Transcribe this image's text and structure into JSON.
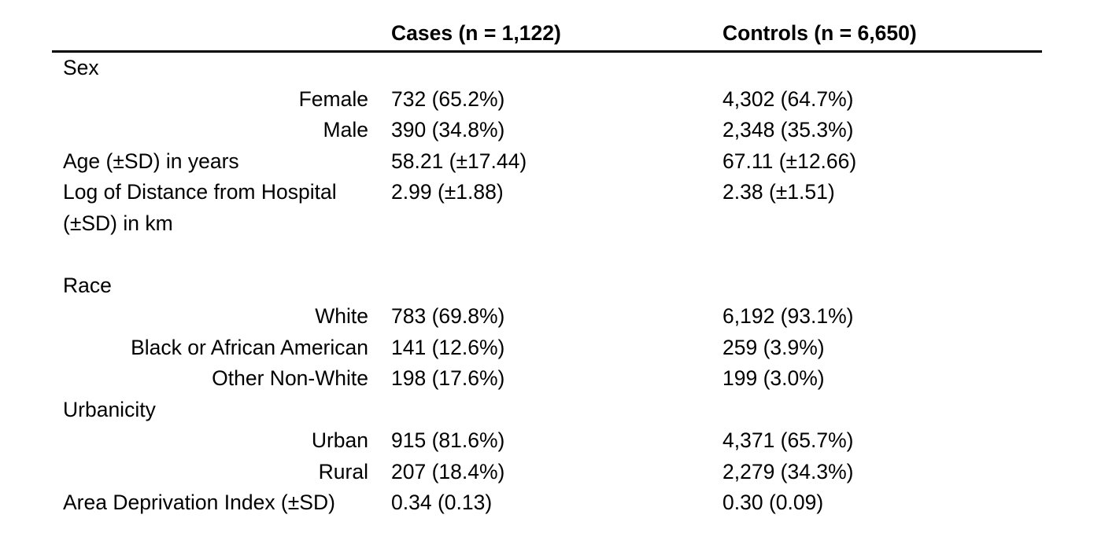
{
  "table": {
    "colors": {
      "text": "#000000",
      "background": "#ffffff",
      "header_rule": "#000000"
    },
    "header": {
      "row_label_column": "",
      "cases": "Cases (n = 1,122)",
      "controls": "Controls (n = 6,650)"
    },
    "rows": [
      {
        "type": "category",
        "label": "Sex",
        "cases": "",
        "controls": ""
      },
      {
        "type": "sub",
        "label": "Female",
        "cases": "732 (65.2%)",
        "controls": "4,302 (64.7%)"
      },
      {
        "type": "sub",
        "label": "Male",
        "cases": "390 (34.8%)",
        "controls": "2,348 (35.3%)"
      },
      {
        "type": "category",
        "label": "Age (±SD) in years",
        "cases": "58.21 (±17.44)",
        "controls": "67.11 (±12.66)"
      },
      {
        "type": "category",
        "label": "Log of Distance from Hospital (±SD) in km",
        "cases": "2.99 (±1.88)",
        "controls": "2.38 (±1.51)"
      },
      {
        "type": "spacer",
        "label": "",
        "cases": "",
        "controls": ""
      },
      {
        "type": "category",
        "label": "Race",
        "cases": "",
        "controls": ""
      },
      {
        "type": "sub",
        "label": "White",
        "cases": "783 (69.8%)",
        "controls": "6,192 (93.1%)"
      },
      {
        "type": "sub",
        "label": "Black or African American",
        "cases": "141 (12.6%)",
        "controls": "259 (3.9%)"
      },
      {
        "type": "sub",
        "label": "Other Non-White",
        "cases": "198 (17.6%)",
        "controls": "199 (3.0%)"
      },
      {
        "type": "category",
        "label": "Urbanicity",
        "cases": "",
        "controls": ""
      },
      {
        "type": "sub",
        "label": "Urban",
        "cases": "915 (81.6%)",
        "controls": "4,371 (65.7%)"
      },
      {
        "type": "sub",
        "label": "Rural",
        "cases": "207 (18.4%)",
        "controls": "2,279 (34.3%)"
      },
      {
        "type": "category",
        "label": "Area Deprivation Index (±SD)",
        "cases": "0.34 (0.13)",
        "controls": "0.30 (0.09)"
      }
    ]
  },
  "chart_data": {
    "type": "table",
    "columns": [
      "",
      "Cases (n = 1,122)",
      "Controls (n = 6,650)"
    ],
    "rows": [
      [
        "Sex",
        "",
        ""
      ],
      [
        "Female",
        "732 (65.2%)",
        "4,302 (64.7%)"
      ],
      [
        "Male",
        "390 (34.8%)",
        "2,348 (35.3%)"
      ],
      [
        "Age (±SD) in years",
        "58.21 (±17.44)",
        "67.11 (±12.66)"
      ],
      [
        "Log of Distance from Hospital (±SD) in km",
        "2.99 (±1.88)",
        "2.38 (±1.51)"
      ],
      [
        "Race",
        "",
        ""
      ],
      [
        "White",
        "783 (69.8%)",
        "6,192 (93.1%)"
      ],
      [
        "Black or African American",
        "141 (12.6%)",
        "259 (3.9%)"
      ],
      [
        "Other Non-White",
        "198 (17.6%)",
        "199 (3.0%)"
      ],
      [
        "Urbanicity",
        "",
        ""
      ],
      [
        "Urban",
        "915 (81.6%)",
        "4,371 (65.7%)"
      ],
      [
        "Rural",
        "207 (18.4%)",
        "2,279 (34.3%)"
      ],
      [
        "Area Deprivation Index (±SD)",
        "0.34 (0.13)",
        "0.30 (0.09)"
      ]
    ]
  }
}
